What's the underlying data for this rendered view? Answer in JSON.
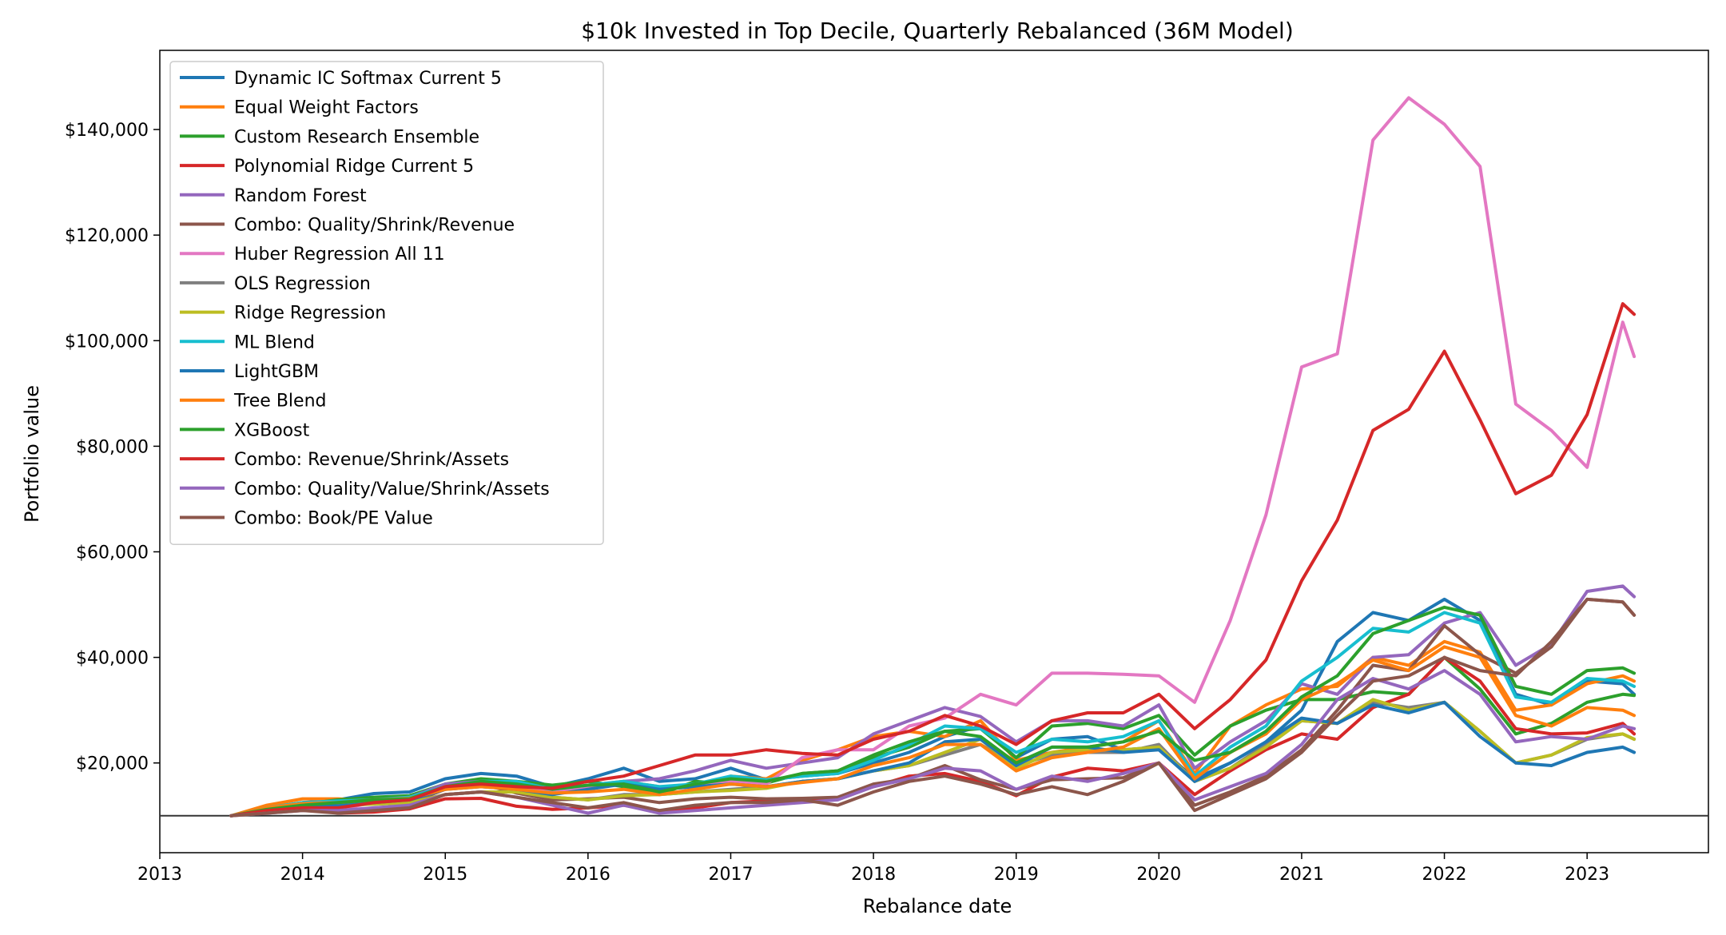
{
  "chart_data": {
    "type": "line",
    "title": "$10k Invested in Top Decile, Quarterly Rebalanced (36M Model)",
    "xlabel": "Rebalance date",
    "ylabel": "Portfolio value",
    "xlim": [
      2013.0,
      2023.85
    ],
    "ylim": [
      3000,
      155000
    ],
    "x_ticks": [
      {
        "value": 2013,
        "label": "2013"
      },
      {
        "value": 2014,
        "label": "2014"
      },
      {
        "value": 2015,
        "label": "2015"
      },
      {
        "value": 2016,
        "label": "2016"
      },
      {
        "value": 2017,
        "label": "2017"
      },
      {
        "value": 2018,
        "label": "2018"
      },
      {
        "value": 2019,
        "label": "2019"
      },
      {
        "value": 2020,
        "label": "2020"
      },
      {
        "value": 2021,
        "label": "2021"
      },
      {
        "value": 2022,
        "label": "2022"
      },
      {
        "value": 2023,
        "label": "2023"
      }
    ],
    "y_ticks": [
      {
        "value": 20000,
        "label": "$20,000"
      },
      {
        "value": 40000,
        "label": "$40,000"
      },
      {
        "value": 60000,
        "label": "$60,000"
      },
      {
        "value": 80000,
        "label": "$80,000"
      },
      {
        "value": 100000,
        "label": "$100,000"
      },
      {
        "value": 120000,
        "label": "$120,000"
      },
      {
        "value": 140000,
        "label": "$140,000"
      }
    ],
    "baseline": 10000,
    "baseline_color": "#333333",
    "grid": false,
    "legend_position": "top-left",
    "x": [
      2013.5,
      2013.75,
      2014.0,
      2014.25,
      2014.5,
      2014.75,
      2015.0,
      2015.25,
      2015.5,
      2015.75,
      2016.0,
      2016.25,
      2016.5,
      2016.75,
      2017.0,
      2017.25,
      2017.5,
      2017.75,
      2018.0,
      2018.25,
      2018.5,
      2018.75,
      2019.0,
      2019.25,
      2019.5,
      2019.75,
      2020.0,
      2020.25,
      2020.5,
      2020.75,
      2021.0,
      2021.25,
      2021.5,
      2021.75,
      2022.0,
      2022.25,
      2022.5,
      2022.75,
      2023.0,
      2023.25,
      2023.33
    ],
    "series": [
      {
        "name": "Dynamic IC Softmax Current 5",
        "color": "#1f77b4",
        "values": [
          10000,
          11500,
          12500,
          13000,
          14200,
          14500,
          17000,
          18000,
          17500,
          15500,
          17000,
          19000,
          16500,
          17000,
          19000,
          16800,
          17500,
          18000,
          20000,
          22000,
          25000,
          27000,
          21000,
          24500,
          25000,
          22500,
          23000,
          17000,
          20000,
          24000,
          30000,
          43000,
          48500,
          47000,
          51000,
          47000,
          33000,
          31000,
          35500,
          35000,
          33000
        ]
      },
      {
        "name": "Equal Weight Factors",
        "color": "#ff7f0e",
        "values": [
          10000,
          12000,
          13200,
          13200,
          12800,
          12200,
          15200,
          16000,
          15000,
          14000,
          15800,
          16500,
          15500,
          15500,
          17500,
          17000,
          20500,
          22500,
          25000,
          26000,
          25000,
          28000,
          20500,
          22000,
          23000,
          24000,
          28000,
          18000,
          27000,
          31000,
          34000,
          34500,
          40000,
          38500,
          43000,
          41000,
          30000,
          31000,
          35000,
          36500,
          35500
        ]
      },
      {
        "name": "Custom Research Ensemble",
        "color": "#2ca02c",
        "values": [
          10000,
          11500,
          12200,
          13000,
          13500,
          13800,
          16000,
          17000,
          16500,
          15800,
          16500,
          15500,
          14000,
          16500,
          16000,
          16200,
          18000,
          18500,
          21000,
          23000,
          26000,
          26500,
          21000,
          27000,
          27500,
          26500,
          29000,
          21500,
          27000,
          30000,
          32000,
          32000,
          33500,
          33000,
          40000,
          34000,
          25500,
          27500,
          31500,
          33000,
          32800
        ]
      },
      {
        "name": "Polynomial Ridge Current 5",
        "color": "#d62728",
        "values": [
          10000,
          10800,
          11500,
          10500,
          10700,
          11300,
          13200,
          13300,
          11800,
          11200,
          11500,
          12000,
          10800,
          11500,
          12500,
          12800,
          13000,
          13300,
          15500,
          17500,
          18000,
          16500,
          13800,
          17300,
          19000,
          18500,
          20000,
          14000,
          18500,
          22500,
          25500,
          24500,
          30500,
          33000,
          40000,
          35500,
          26500,
          25500,
          25700,
          27500,
          25500
        ]
      },
      {
        "name": "Random Forest",
        "color": "#9467bd",
        "values": [
          10000,
          11000,
          12000,
          11500,
          12800,
          13500,
          16000,
          16500,
          16300,
          15000,
          15000,
          16500,
          17000,
          18500,
          20500,
          19000,
          20000,
          21000,
          25500,
          28000,
          30500,
          28800,
          24000,
          28000,
          28000,
          27000,
          31000,
          19000,
          24000,
          28000,
          35000,
          33000,
          40000,
          40500,
          46500,
          48500,
          38500,
          42500,
          52500,
          53500,
          51500
        ]
      },
      {
        "name": "Combo: Quality/Shrink/Revenue",
        "color": "#8c564b",
        "values": [
          10000,
          11000,
          11700,
          12000,
          12300,
          12500,
          15000,
          16000,
          14300,
          13000,
          13200,
          13500,
          12500,
          13200,
          13500,
          13200,
          13300,
          13500,
          16000,
          17000,
          19500,
          16800,
          15000,
          16800,
          17000,
          17200,
          20000,
          12000,
          14500,
          17500,
          22500,
          30000,
          38500,
          37500,
          46000,
          40500,
          37000,
          42000,
          51000,
          50500,
          48000
        ]
      },
      {
        "name": "Huber Regression All 11",
        "color": "#e377c2",
        "values": [
          10000,
          11000,
          12000,
          11200,
          12500,
          13000,
          15000,
          15800,
          15500,
          14500,
          15500,
          16000,
          15000,
          15500,
          16500,
          16000,
          21000,
          22500,
          22500,
          27000,
          28500,
          33000,
          31000,
          37000,
          37000,
          36800,
          36500,
          31500,
          47000,
          67000,
          95000,
          97500,
          138000,
          146000,
          141000,
          133000,
          88000,
          83000,
          76000,
          103500,
          97000
        ]
      },
      {
        "name": "OLS Regression",
        "color": "#7f7f7f",
        "values": [
          10000,
          11000,
          11500,
          12000,
          12200,
          12500,
          14000,
          14500,
          14500,
          13500,
          13000,
          14000,
          14000,
          14500,
          15000,
          15500,
          16500,
          17000,
          18500,
          19500,
          21500,
          23500,
          19500,
          21500,
          22000,
          22000,
          23500,
          16500,
          19000,
          23500,
          28000,
          27500,
          31500,
          30500,
          31500,
          26000,
          20000,
          21500,
          24500,
          25500,
          24500
        ]
      },
      {
        "name": "Ridge Regression",
        "color": "#bcbd22",
        "values": [
          10000,
          11000,
          11500,
          12000,
          12200,
          12500,
          14000,
          14500,
          14500,
          13500,
          13000,
          13800,
          14000,
          14500,
          14800,
          15200,
          16500,
          17000,
          18500,
          19500,
          22000,
          24500,
          19000,
          22000,
          22500,
          22500,
          23000,
          16500,
          19000,
          23000,
          28000,
          27500,
          32000,
          30000,
          31500,
          26000,
          20000,
          21500,
          24800,
          25500,
          24500
        ]
      },
      {
        "name": "ML Blend",
        "color": "#17becf",
        "values": [
          10000,
          11500,
          12500,
          12800,
          13000,
          13500,
          15500,
          16500,
          16500,
          15000,
          15800,
          16500,
          15500,
          16000,
          17500,
          16800,
          17500,
          18000,
          20500,
          23500,
          27000,
          26500,
          22000,
          24500,
          24000,
          25000,
          28000,
          17500,
          23000,
          27000,
          35500,
          40000,
          45500,
          44800,
          48500,
          46500,
          32500,
          31500,
          36000,
          35500,
          34500
        ]
      },
      {
        "name": "LightGBM",
        "color": "#1f77b4",
        "values": [
          10000,
          11000,
          11500,
          12000,
          12500,
          13000,
          15000,
          15500,
          15000,
          14000,
          15000,
          16000,
          15000,
          15500,
          16000,
          15500,
          16500,
          17000,
          18500,
          20000,
          24000,
          24500,
          19500,
          23000,
          23000,
          22000,
          22500,
          16500,
          20000,
          24000,
          28500,
          27500,
          31000,
          29500,
          31500,
          25000,
          20000,
          19500,
          22000,
          23000,
          22000
        ]
      },
      {
        "name": "Tree Blend",
        "color": "#ff7f0e",
        "values": [
          10000,
          11500,
          12300,
          12500,
          13000,
          13300,
          15000,
          15500,
          15000,
          14300,
          14500,
          15000,
          14000,
          15000,
          16000,
          15500,
          16300,
          17000,
          19500,
          21000,
          23500,
          23500,
          18500,
          21000,
          22000,
          23000,
          26500,
          17000,
          22000,
          25500,
          32000,
          35000,
          39500,
          37500,
          42000,
          40000,
          29000,
          27000,
          30500,
          30000,
          29000
        ]
      },
      {
        "name": "XGBoost",
        "color": "#2ca02c",
        "values": [
          10000,
          11200,
          12000,
          12500,
          13000,
          13200,
          15500,
          16500,
          16000,
          15000,
          15800,
          16000,
          14500,
          16000,
          17000,
          16500,
          18000,
          18500,
          21500,
          24000,
          26000,
          25000,
          20000,
          23000,
          23000,
          24000,
          26000,
          20500,
          22000,
          26000,
          32500,
          36500,
          44500,
          47000,
          49500,
          48000,
          34500,
          33000,
          37500,
          38000,
          37000
        ]
      },
      {
        "name": "Combo: Revenue/Shrink/Assets",
        "color": "#d62728",
        "values": [
          10000,
          11000,
          11500,
          11500,
          12500,
          13000,
          15500,
          16000,
          15500,
          15200,
          16500,
          17500,
          19500,
          21500,
          21500,
          22500,
          21800,
          21500,
          24500,
          26000,
          29000,
          27000,
          23500,
          28000,
          29500,
          29500,
          33000,
          26500,
          32000,
          39500,
          54500,
          66000,
          83000,
          87000,
          98000,
          85000,
          71000,
          74500,
          86000,
          107000,
          105000
        ]
      },
      {
        "name": "Combo: Quality/Value/Shrink/Assets",
        "color": "#9467bd",
        "values": [
          10000,
          10500,
          11000,
          11000,
          11500,
          12000,
          14000,
          14500,
          13500,
          12000,
          10500,
          12000,
          10500,
          11000,
          11500,
          12000,
          12500,
          13000,
          15500,
          17000,
          19000,
          18500,
          15000,
          17500,
          16500,
          18000,
          20000,
          13000,
          15500,
          18000,
          23500,
          32000,
          36000,
          34000,
          37500,
          33000,
          24000,
          25000,
          24500,
          27000,
          26500
        ]
      },
      {
        "name": "Combo: Book/PE Value",
        "color": "#8c564b",
        "values": [
          10000,
          10500,
          11000,
          10500,
          11000,
          11500,
          14000,
          14500,
          13500,
          12500,
          11500,
          12500,
          11000,
          12000,
          12500,
          12500,
          13000,
          12000,
          14500,
          16500,
          17500,
          16000,
          14000,
          15500,
          14000,
          16500,
          20000,
          11000,
          14000,
          17000,
          22000,
          29000,
          35500,
          36500,
          40000,
          37500,
          36500,
          43000,
          51000,
          50500,
          48000
        ]
      }
    ]
  }
}
